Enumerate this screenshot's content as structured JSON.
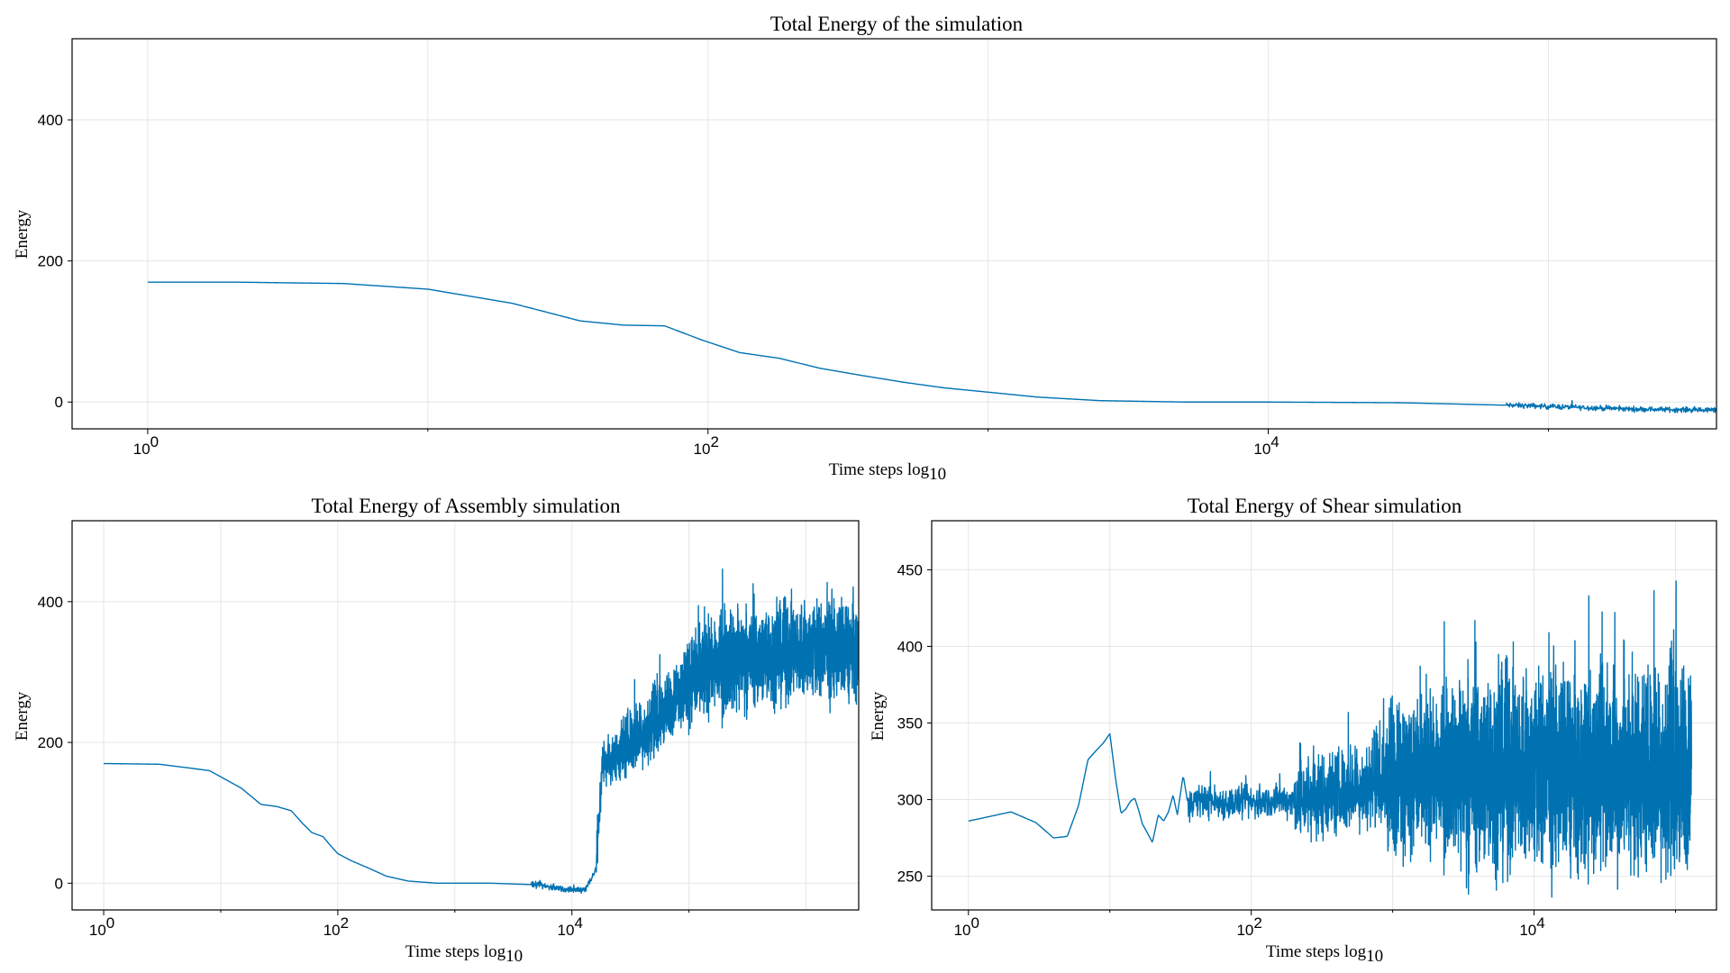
{
  "chart_data": [
    {
      "type": "line",
      "id": "top",
      "title": "Total Energy of the simulation",
      "xlabel": "Time steps log",
      "xlabel_subscript": "10",
      "ylabel": "Energy",
      "x_scale": "log10",
      "xlim_exponents": [
        -0.27,
        5.6
      ],
      "ylim": [
        -38,
        515
      ],
      "x_ticks": [
        {
          "base": "10",
          "exp": "0",
          "value": 1
        },
        {
          "base": "10",
          "exp": "2",
          "value": 100
        },
        {
          "base": "10",
          "exp": "4",
          "value": 10000
        }
      ],
      "y_ticks": [
        0,
        200,
        400
      ],
      "grid": true,
      "color": "#0072b2",
      "series": [
        {
          "points": [
            [
              1,
              170
            ],
            [
              2,
              170
            ],
            [
              5,
              168
            ],
            [
              10,
              160
            ],
            [
              20,
              140
            ],
            [
              35,
              115
            ],
            [
              50,
              109
            ],
            [
              70,
              108
            ],
            [
              95,
              88
            ],
            [
              130,
              70
            ],
            [
              180,
              62
            ],
            [
              250,
              48
            ],
            [
              350,
              38
            ],
            [
              500,
              28
            ],
            [
              700,
              20
            ],
            [
              1000,
              14
            ],
            [
              1500,
              7
            ],
            [
              2500,
              2
            ],
            [
              5000,
              0
            ],
            [
              10000,
              0
            ],
            [
              30000,
              -1
            ],
            [
              80000,
              -5
            ],
            [
              200000,
              -10
            ],
            [
              500000,
              -12
            ],
            [
              1000000,
              -10
            ],
            [
              1600000,
              10
            ],
            [
              2000000,
              60
            ],
            [
              2600000,
              140
            ],
            [
              3200000,
              195
            ],
            [
              4000000,
              210
            ],
            [
              5200000,
              250
            ],
            [
              6500000,
              270
            ],
            [
              8500000,
              310
            ],
            [
              11000000,
              320
            ],
            [
              20000000,
              325
            ],
            [
              60000000,
              330
            ],
            [
              140000000,
              330
            ],
            [
              240000000,
              330
            ]
          ],
          "noise": [
            {
              "from": 70000,
              "to": 1500000,
              "amp": 4
            },
            {
              "from": 1500000,
              "to": 2500000,
              "amp": 30
            },
            {
              "from": 2500000,
              "to": 4500000,
              "amp": 45
            },
            {
              "from": 4500000,
              "to": 8500000,
              "amp": 55
            },
            {
              "from": 8500000,
              "to": 240000000,
              "amp": 80
            }
          ]
        }
      ]
    },
    {
      "type": "line",
      "id": "assembly",
      "title": "Total Energy of Assembly simulation",
      "xlabel": "Time steps log",
      "xlabel_subscript": "10",
      "ylabel": "Energy",
      "x_scale": "log10",
      "xlim_exponents": [
        -0.27,
        6.45
      ],
      "ylim": [
        -38,
        515
      ],
      "x_ticks": [
        {
          "base": "10",
          "exp": "0",
          "value": 1
        },
        {
          "base": "10",
          "exp": "2",
          "value": 100
        },
        {
          "base": "10",
          "exp": "4",
          "value": 10000
        }
      ],
      "y_ticks": [
        0,
        200,
        400
      ],
      "grid": true,
      "color": "#0072b2",
      "series": [
        {
          "points": [
            [
              1,
              170
            ],
            [
              3,
              169
            ],
            [
              8,
              160
            ],
            [
              15,
              135
            ],
            [
              22,
              112
            ],
            [
              30,
              109
            ],
            [
              40,
              103
            ],
            [
              50,
              85
            ],
            [
              60,
              72
            ],
            [
              75,
              66
            ],
            [
              85,
              55
            ],
            [
              100,
              42
            ],
            [
              130,
              32
            ],
            [
              180,
              22
            ],
            [
              260,
              10
            ],
            [
              400,
              3
            ],
            [
              700,
              0
            ],
            [
              2000,
              0
            ],
            [
              4500,
              -2
            ],
            [
              7000,
              -6
            ],
            [
              10000,
              -10
            ],
            [
              13000,
              -8
            ],
            [
              16000,
              20
            ],
            [
              18000,
              170
            ],
            [
              22000,
              175
            ],
            [
              30000,
              200
            ],
            [
              45000,
              220
            ],
            [
              70000,
              255
            ],
            [
              100000,
              290
            ],
            [
              150000,
              310
            ],
            [
              300000,
              320
            ],
            [
              1000000,
              330
            ],
            [
              2800000,
              330
            ]
          ],
          "noise": [
            {
              "from": 4500,
              "to": 16000,
              "amp": 5
            },
            {
              "from": 16000,
              "to": 25000,
              "amp": 35
            },
            {
              "from": 25000,
              "to": 90000,
              "amp": 50
            },
            {
              "from": 90000,
              "to": 2800000,
              "amp": 75
            }
          ]
        }
      ]
    },
    {
      "type": "line",
      "id": "shear",
      "title": "Total Energy of Shear simulation",
      "xlabel": "Time steps log",
      "xlabel_subscript": "10",
      "ylabel": "Energy",
      "x_scale": "log10",
      "xlim_exponents": [
        -0.26,
        5.29
      ],
      "ylim": [
        228,
        482
      ],
      "x_ticks": [
        {
          "base": "10",
          "exp": "0",
          "value": 1
        },
        {
          "base": "10",
          "exp": "2",
          "value": 100
        },
        {
          "base": "10",
          "exp": "4",
          "value": 10000
        }
      ],
      "y_ticks": [
        250,
        300,
        350,
        400,
        450
      ],
      "grid": true,
      "color": "#0072b2",
      "series": [
        {
          "points": [
            [
              1,
              286
            ],
            [
              2,
              292
            ],
            [
              3,
              285
            ],
            [
              4,
              275
            ],
            [
              5,
              276
            ],
            [
              6,
              296
            ],
            [
              7,
              326
            ],
            [
              8,
              332
            ],
            [
              9,
              337
            ],
            [
              10,
              343
            ],
            [
              11,
              313
            ],
            [
              12,
              291
            ],
            [
              13,
              294
            ],
            [
              14,
              299
            ],
            [
              15,
              301
            ],
            [
              16,
              293
            ],
            [
              17,
              284
            ],
            [
              18,
              280
            ],
            [
              19,
              276
            ],
            [
              20,
              272
            ],
            [
              22,
              290
            ],
            [
              24,
              286
            ],
            [
              26,
              292
            ],
            [
              28,
              303
            ],
            [
              30,
              290
            ],
            [
              33,
              316
            ],
            [
              36,
              295
            ],
            [
              40,
              300
            ],
            [
              60,
              298
            ],
            [
              100,
              298
            ],
            [
              200,
              300
            ],
            [
              400,
              305
            ],
            [
              1000,
              315
            ],
            [
              3000,
              320
            ],
            [
              10000,
              318
            ],
            [
              50000,
              320
            ],
            [
              130000,
              320
            ]
          ],
          "noise": [
            {
              "from": 35,
              "to": 200,
              "amp": 12
            },
            {
              "from": 200,
              "to": 900,
              "amp": 30
            },
            {
              "from": 900,
              "to": 3000,
              "amp": 55
            },
            {
              "from": 3000,
              "to": 130000,
              "amp": 70
            }
          ]
        }
      ]
    }
  ]
}
